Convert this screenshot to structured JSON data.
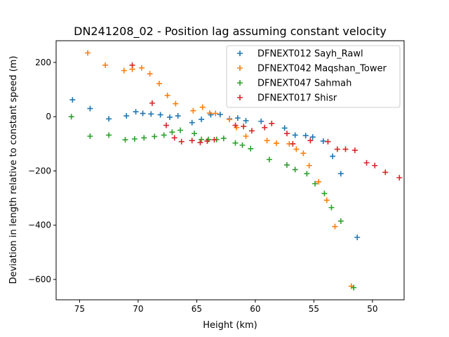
{
  "chart_data": {
    "type": "scatter",
    "title": "DN241208_02 - Position lag assuming constant velocity",
    "xlabel": "Height (km)",
    "ylabel": "Deviation in length relative to constant speed (m)",
    "xlim": [
      77.0,
      47.3
    ],
    "ylim": [
      -675,
      280
    ],
    "xticks": [
      75,
      70,
      65,
      60,
      55,
      50
    ],
    "yticks": [
      200,
      0,
      -200,
      -400,
      -600
    ],
    "grid": false,
    "legend": "top-right",
    "marker": "plus",
    "series": [
      {
        "name": "DFNEXT012 Sayh_Rawl",
        "color": "#1f77b4",
        "x": [
          75.6,
          74.1,
          72.5,
          71.0,
          70.2,
          69.6,
          68.9,
          68.1,
          67.3,
          66.6,
          65.4,
          64.6,
          63.8,
          63.0,
          62.2,
          61.5,
          60.8,
          59.5,
          57.5,
          56.6,
          55.7,
          55.1,
          54.2,
          53.4,
          52.7,
          51.3
        ],
        "y": [
          62,
          30,
          -8,
          3,
          18,
          12,
          10,
          7,
          -2,
          3,
          -22,
          -10,
          7,
          8,
          -8,
          -5,
          -15,
          -17,
          -42,
          -68,
          -70,
          -75,
          -90,
          -146,
          -210,
          -445
        ]
      },
      {
        "name": "DFNEXT042 Maqshan_Tower",
        "color": "#ff7f0e",
        "x": [
          74.3,
          72.8,
          71.2,
          70.5,
          69.7,
          69.0,
          68.2,
          67.5,
          66.8,
          65.3,
          64.5,
          63.9,
          63.4,
          62.2,
          61.6,
          60.8,
          59.0,
          58.2,
          57.1,
          56.5,
          55.9,
          55.4,
          54.6,
          53.9,
          53.2,
          51.8
        ],
        "y": [
          235,
          190,
          170,
          175,
          180,
          158,
          122,
          78,
          48,
          22,
          35,
          13,
          12,
          -10,
          -40,
          -72,
          -88,
          -98,
          -100,
          -120,
          -135,
          -180,
          -240,
          -308,
          -405,
          -625
        ]
      },
      {
        "name": "DFNEXT047 Sahmah",
        "color": "#2ca02c",
        "x": [
          75.7,
          74.1,
          72.5,
          71.1,
          70.3,
          69.5,
          68.6,
          67.8,
          67.1,
          66.4,
          65.2,
          64.6,
          64.0,
          63.3,
          62.7,
          61.7,
          61.1,
          60.4,
          58.8,
          57.3,
          56.6,
          55.6,
          54.9,
          54.1,
          53.5,
          52.7,
          51.6
        ],
        "y": [
          0,
          -72,
          -68,
          -85,
          -82,
          -78,
          -73,
          -68,
          -57,
          -50,
          -62,
          -84,
          -84,
          -84,
          -80,
          -97,
          -105,
          -118,
          -158,
          -178,
          -195,
          -210,
          -247,
          -283,
          -335,
          -385,
          -630
        ]
      },
      {
        "name": "DFNEXT017 Shisr",
        "color": "#d62728",
        "x": [
          70.5,
          68.8,
          67.6,
          66.9,
          66.3,
          65.4,
          64.7,
          64.1,
          63.5,
          61.7,
          61.0,
          60.3,
          59.2,
          58.6,
          57.3,
          56.8,
          55.3,
          53.8,
          53.0,
          52.3,
          51.5,
          50.5,
          49.8,
          48.9,
          47.7
        ],
        "y": [
          190,
          50,
          -32,
          -78,
          -92,
          -88,
          -95,
          -90,
          -85,
          -32,
          -36,
          -52,
          -40,
          -25,
          -62,
          -100,
          -88,
          -92,
          -120,
          -120,
          -124,
          -170,
          -180,
          -205,
          -225
        ]
      }
    ]
  }
}
